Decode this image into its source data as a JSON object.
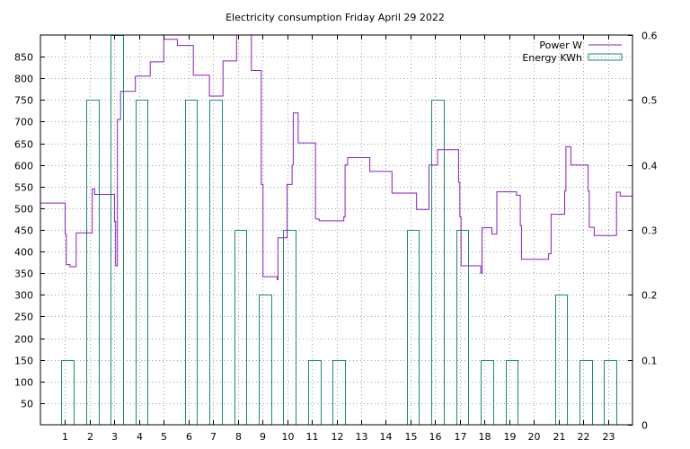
{
  "chart_data": {
    "type": "line",
    "title": "Electricity consumption Friday April 29 2022",
    "grid": true,
    "legend_position": "top-right",
    "x_axis": {
      "range": [
        0,
        24
      ],
      "ticks": [
        1,
        2,
        3,
        4,
        5,
        6,
        7,
        8,
        9,
        10,
        11,
        12,
        13,
        14,
        15,
        16,
        17,
        18,
        19,
        20,
        21,
        22,
        23
      ]
    },
    "y_axis_left": {
      "range": [
        0,
        900
      ],
      "ticks": [
        50,
        100,
        150,
        200,
        250,
        300,
        350,
        400,
        450,
        500,
        550,
        600,
        650,
        700,
        750,
        800,
        850
      ]
    },
    "y_axis_right": {
      "range": [
        0,
        0.6
      ],
      "ticks": [
        0,
        0.1,
        0.2,
        0.3,
        0.4,
        0.5,
        0.6
      ]
    },
    "series": [
      {
        "name": "Power W",
        "type": "line",
        "axis": "left",
        "color": "#8b1ec2",
        "points": [
          [
            0,
            512
          ],
          [
            1.0,
            512
          ],
          [
            1.0,
            440
          ],
          [
            1.05,
            440
          ],
          [
            1.05,
            370
          ],
          [
            1.2,
            370
          ],
          [
            1.2,
            365
          ],
          [
            1.45,
            365
          ],
          [
            1.45,
            443
          ],
          [
            2.1,
            443
          ],
          [
            2.1,
            545
          ],
          [
            2.2,
            545
          ],
          [
            2.2,
            532
          ],
          [
            3.0,
            532
          ],
          [
            3.0,
            470
          ],
          [
            3.05,
            470
          ],
          [
            3.05,
            367
          ],
          [
            3.12,
            367
          ],
          [
            3.12,
            705
          ],
          [
            3.25,
            705
          ],
          [
            3.25,
            770
          ],
          [
            3.85,
            770
          ],
          [
            3.85,
            805
          ],
          [
            4.45,
            805
          ],
          [
            4.45,
            838
          ],
          [
            5.0,
            838
          ],
          [
            5.0,
            890
          ],
          [
            5.55,
            890
          ],
          [
            5.55,
            876
          ],
          [
            6.2,
            876
          ],
          [
            6.2,
            807
          ],
          [
            6.85,
            807
          ],
          [
            6.85,
            759
          ],
          [
            7.4,
            759
          ],
          [
            7.4,
            840
          ],
          [
            7.95,
            840
          ],
          [
            7.95,
            900
          ],
          [
            8.55,
            900
          ],
          [
            8.55,
            818
          ],
          [
            8.95,
            818
          ],
          [
            8.95,
            555
          ],
          [
            9.02,
            555
          ],
          [
            9.02,
            342
          ],
          [
            9.6,
            342
          ],
          [
            9.6,
            335
          ],
          [
            9.63,
            335
          ],
          [
            9.63,
            432
          ],
          [
            10.0,
            432
          ],
          [
            10.0,
            555
          ],
          [
            10.2,
            555
          ],
          [
            10.2,
            600
          ],
          [
            10.25,
            600
          ],
          [
            10.25,
            720
          ],
          [
            10.45,
            720
          ],
          [
            10.45,
            651
          ],
          [
            11.15,
            651
          ],
          [
            11.15,
            475
          ],
          [
            11.3,
            475
          ],
          [
            11.3,
            471
          ],
          [
            12.3,
            471
          ],
          [
            12.3,
            480
          ],
          [
            12.35,
            480
          ],
          [
            12.35,
            600
          ],
          [
            12.45,
            600
          ],
          [
            12.45,
            617
          ],
          [
            13.35,
            617
          ],
          [
            13.35,
            585
          ],
          [
            14.25,
            585
          ],
          [
            14.25,
            535
          ],
          [
            15.25,
            535
          ],
          [
            15.25,
            497
          ],
          [
            15.75,
            497
          ],
          [
            15.75,
            600
          ],
          [
            16.1,
            600
          ],
          [
            16.1,
            635
          ],
          [
            16.95,
            635
          ],
          [
            16.95,
            560
          ],
          [
            17.0,
            560
          ],
          [
            17.0,
            480
          ],
          [
            17.05,
            480
          ],
          [
            17.05,
            367
          ],
          [
            17.85,
            367
          ],
          [
            17.85,
            350
          ],
          [
            17.9,
            350
          ],
          [
            17.9,
            455
          ],
          [
            18.3,
            455
          ],
          [
            18.3,
            440
          ],
          [
            18.5,
            440
          ],
          [
            18.5,
            538
          ],
          [
            19.3,
            538
          ],
          [
            19.3,
            530
          ],
          [
            19.45,
            530
          ],
          [
            19.45,
            460
          ],
          [
            19.5,
            460
          ],
          [
            19.5,
            382
          ],
          [
            20.6,
            382
          ],
          [
            20.6,
            395
          ],
          [
            20.7,
            395
          ],
          [
            20.7,
            486
          ],
          [
            21.25,
            486
          ],
          [
            21.25,
            540
          ],
          [
            21.3,
            540
          ],
          [
            21.3,
            642
          ],
          [
            21.5,
            642
          ],
          [
            21.5,
            600
          ],
          [
            22.2,
            600
          ],
          [
            22.2,
            540
          ],
          [
            22.25,
            540
          ],
          [
            22.25,
            456
          ],
          [
            22.45,
            456
          ],
          [
            22.45,
            437
          ],
          [
            23.35,
            437
          ],
          [
            23.35,
            537
          ],
          [
            23.5,
            537
          ],
          [
            23.5,
            528
          ],
          [
            24,
            528
          ]
        ]
      },
      {
        "name": "Energy KWh",
        "type": "bar",
        "axis": "right",
        "color": "#1a8a78",
        "categories": [
          1,
          2,
          3,
          4,
          5,
          6,
          7,
          8,
          9,
          10,
          11,
          12,
          13,
          14,
          15,
          16,
          17,
          18,
          19,
          20,
          21,
          22,
          23
        ],
        "values": [
          0.1,
          0.5,
          0.6,
          0.5,
          0,
          0.5,
          0.5,
          0.3,
          0.2,
          0.3,
          0.1,
          0.1,
          0,
          0,
          0.3,
          0.5,
          0.3,
          0.1,
          0.1,
          0,
          0.2,
          0.1,
          0.1
        ]
      }
    ]
  }
}
